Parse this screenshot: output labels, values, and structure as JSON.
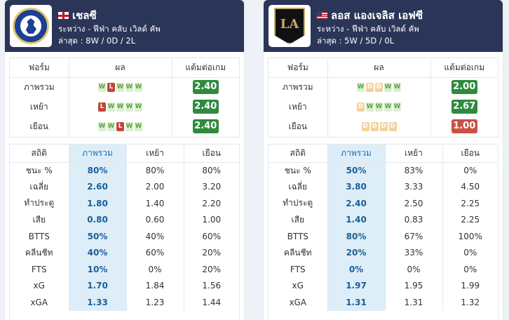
{
  "teams": [
    {
      "name": "เชลซี",
      "flag_icon": "england-flag-icon",
      "logo": "chelsea-crest-icon",
      "competition": "ระหว่าง - ฟีฟ่า คลับ เวิลด์ คัพ",
      "recent": "ล่าสุด : 8W / 0D / 2L",
      "form_headers": [
        "ฟอร์ม",
        "ผล",
        "แต้มต่อเกม"
      ],
      "form_rows": [
        {
          "label": "ภาพรวม",
          "results": [
            "W",
            "L",
            "W",
            "W",
            "W"
          ],
          "ppg": "2.40",
          "ppg_color": "green"
        },
        {
          "label": "เหย้า",
          "results": [
            "L",
            "W",
            "W",
            "W",
            "W"
          ],
          "ppg": "2.40",
          "ppg_color": "green"
        },
        {
          "label": "เยือน",
          "results": [
            "W",
            "W",
            "L",
            "W",
            "W"
          ],
          "ppg": "2.40",
          "ppg_color": "green"
        }
      ],
      "stat_headers": [
        "สถิติ",
        "ภาพรวม",
        "เหย้า",
        "เยือน"
      ],
      "stat_rows": [
        {
          "label": "ชนะ %",
          "overall": "80%",
          "home": "80%",
          "away": "80%"
        },
        {
          "label": "เฉลี่ย",
          "overall": "2.60",
          "home": "2.00",
          "away": "3.20"
        },
        {
          "label": "ทำประตู",
          "overall": "1.80",
          "home": "1.40",
          "away": "2.20"
        },
        {
          "label": "เสีย",
          "overall": "0.80",
          "home": "0.60",
          "away": "1.00"
        },
        {
          "label": "BTTS",
          "overall": "50%",
          "home": "40%",
          "away": "60%"
        },
        {
          "label": "คลีนชีท",
          "overall": "40%",
          "home": "60%",
          "away": "20%"
        },
        {
          "label": "FTS",
          "overall": "10%",
          "home": "0%",
          "away": "20%"
        },
        {
          "label": "xG",
          "overall": "1.70",
          "home": "1.84",
          "away": "1.56"
        },
        {
          "label": "xGA",
          "overall": "1.33",
          "home": "1.23",
          "away": "1.44"
        }
      ]
    },
    {
      "name": "ลอส แองเจลิส เอฟซี",
      "flag_icon": "usa-flag-icon",
      "logo": "lafc-crest-icon",
      "logo_text": "LA",
      "competition": "ระหว่าง - ฟีฟ่า คลับ เวิลด์ คัพ",
      "recent": "ล่าสุด : 5W / 5D / 0L",
      "form_headers": [
        "ฟอร์ม",
        "ผล",
        "แต้มต่อเกม"
      ],
      "form_rows": [
        {
          "label": "ภาพรวม",
          "results": [
            "W",
            "D",
            "D",
            "W",
            "W"
          ],
          "ppg": "2.00",
          "ppg_color": "green"
        },
        {
          "label": "เหย้า",
          "results": [
            "D",
            "W",
            "W",
            "W",
            "W"
          ],
          "ppg": "2.67",
          "ppg_color": "green"
        },
        {
          "label": "เยือน",
          "results": [
            "D",
            "D",
            "D",
            "D"
          ],
          "ppg": "1.00",
          "ppg_color": "red"
        }
      ],
      "stat_headers": [
        "สถิติ",
        "ภาพรวม",
        "เหย้า",
        "เยือน"
      ],
      "stat_rows": [
        {
          "label": "ชนะ %",
          "overall": "50%",
          "home": "83%",
          "away": "0%"
        },
        {
          "label": "เฉลี่ย",
          "overall": "3.80",
          "home": "3.33",
          "away": "4.50"
        },
        {
          "label": "ทำประตู",
          "overall": "2.40",
          "home": "2.50",
          "away": "2.25"
        },
        {
          "label": "เสีย",
          "overall": "1.40",
          "home": "0.83",
          "away": "2.25"
        },
        {
          "label": "BTTS",
          "overall": "80%",
          "home": "67%",
          "away": "100%"
        },
        {
          "label": "คลีนชีท",
          "overall": "20%",
          "home": "33%",
          "away": "0%"
        },
        {
          "label": "FTS",
          "overall": "0%",
          "home": "0%",
          "away": "0%"
        },
        {
          "label": "xG",
          "overall": "1.97",
          "home": "1.95",
          "away": "1.99"
        },
        {
          "label": "xGA",
          "overall": "1.31",
          "home": "1.31",
          "away": "1.32"
        }
      ]
    }
  ],
  "colors": {
    "header_bg": "#2b3558",
    "win": "#d9f0cf",
    "loss": "#c0463b",
    "draw": "#f3d39a",
    "ppg_green": "#2e8b3d",
    "ppg_red": "#c95143",
    "highlight_col": "#ddeef9"
  }
}
